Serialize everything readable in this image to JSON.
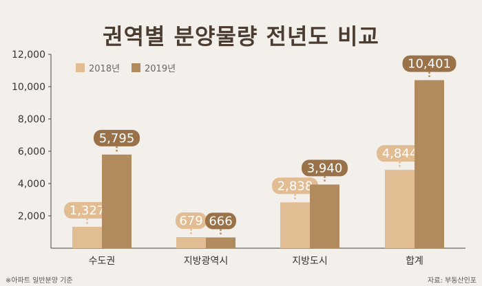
{
  "header": {
    "title": "권역별 분양물량 전년도 비교"
  },
  "footer": {
    "note": "※아파트 일반분양 기준",
    "source": "자료: 부동산인포"
  },
  "colors": {
    "series_2018": "#e2bc92",
    "series_2019": "#b18a5d",
    "label_2018_bg": "#e2bc92",
    "label_2019_bg": "#9a7249",
    "axis": "#444444",
    "text": "#333333"
  },
  "chart_data": {
    "type": "bar",
    "categories": [
      "수도권",
      "지방광역시",
      "지방도시",
      "합계"
    ],
    "series": [
      {
        "name": "2018년",
        "values": [
          1327,
          679,
          2838,
          4844
        ],
        "labels": [
          "1,327",
          "679",
          "2,838",
          "4,844"
        ]
      },
      {
        "name": "2019년",
        "values": [
          5795,
          666,
          3940,
          10401
        ],
        "labels": [
          "5,795",
          "666",
          "3,940",
          "10,401"
        ]
      }
    ],
    "title": "권역별 분양물량 전년도 비교",
    "xlabel": "",
    "ylabel": "",
    "ylim": [
      0,
      12000
    ],
    "yticks": [
      2000,
      4000,
      6000,
      8000,
      10000,
      12000
    ],
    "ytick_labels": [
      "2,000",
      "4,000",
      "6,000",
      "8,000",
      "10,000",
      "12,000"
    ],
    "grid": false,
    "legend_position": "top-left"
  }
}
